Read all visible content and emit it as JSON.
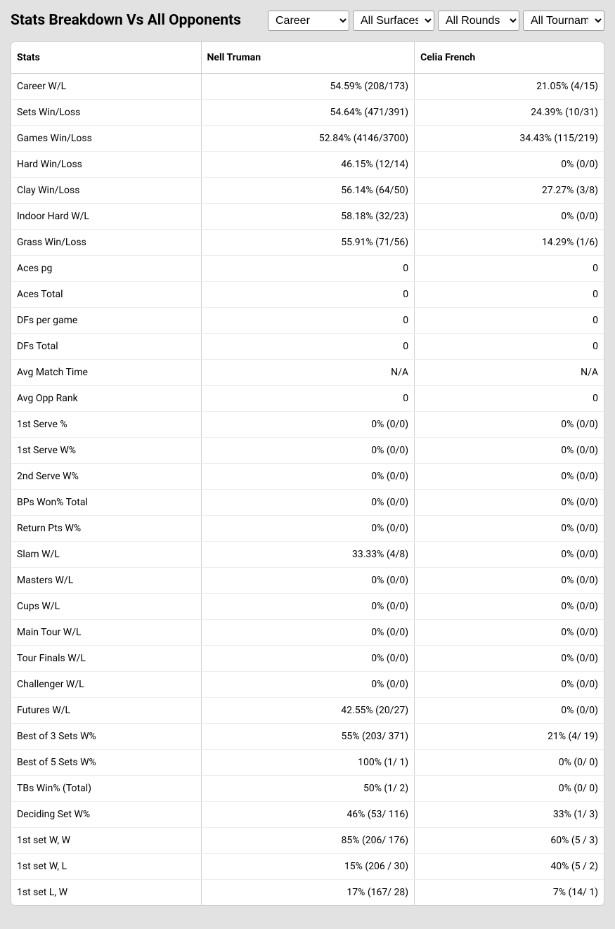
{
  "title": "Stats Breakdown Vs All Opponents",
  "filters": {
    "time": {
      "selected": "Career",
      "options": [
        "Career"
      ]
    },
    "surface": {
      "selected": "All Surfaces",
      "options": [
        "All Surfaces"
      ]
    },
    "rounds": {
      "selected": "All Rounds",
      "options": [
        "All Rounds"
      ]
    },
    "tournaments": {
      "selected": "All Tournaments",
      "options": [
        "All Tournaments"
      ]
    }
  },
  "columns": {
    "stat": "Stats",
    "p1": "Nell Truman",
    "p2": "Celia French"
  },
  "rows": [
    {
      "stat": "Career W/L",
      "p1": "54.59% (208/173)",
      "p2": "21.05% (4/15)"
    },
    {
      "stat": "Sets Win/Loss",
      "p1": "54.64% (471/391)",
      "p2": "24.39% (10/31)"
    },
    {
      "stat": "Games Win/Loss",
      "p1": "52.84% (4146/3700)",
      "p2": "34.43% (115/219)"
    },
    {
      "stat": "Hard Win/Loss",
      "p1": "46.15% (12/14)",
      "p2": "0% (0/0)"
    },
    {
      "stat": "Clay Win/Loss",
      "p1": "56.14% (64/50)",
      "p2": "27.27% (3/8)"
    },
    {
      "stat": "Indoor Hard W/L",
      "p1": "58.18% (32/23)",
      "p2": "0% (0/0)"
    },
    {
      "stat": "Grass Win/Loss",
      "p1": "55.91% (71/56)",
      "p2": "14.29% (1/6)"
    },
    {
      "stat": "Aces pg",
      "p1": "0",
      "p2": "0"
    },
    {
      "stat": "Aces Total",
      "p1": "0",
      "p2": "0"
    },
    {
      "stat": "DFs per game",
      "p1": "0",
      "p2": "0"
    },
    {
      "stat": "DFs Total",
      "p1": "0",
      "p2": "0"
    },
    {
      "stat": "Avg Match Time",
      "p1": "N/A",
      "p2": "N/A"
    },
    {
      "stat": "Avg Opp Rank",
      "p1": "0",
      "p2": "0"
    },
    {
      "stat": "1st Serve %",
      "p1": "0% (0/0)",
      "p2": "0% (0/0)"
    },
    {
      "stat": "1st Serve W%",
      "p1": "0% (0/0)",
      "p2": "0% (0/0)"
    },
    {
      "stat": "2nd Serve W%",
      "p1": "0% (0/0)",
      "p2": "0% (0/0)"
    },
    {
      "stat": "BPs Won% Total",
      "p1": "0% (0/0)",
      "p2": "0% (0/0)"
    },
    {
      "stat": "Return Pts W%",
      "p1": "0% (0/0)",
      "p2": "0% (0/0)"
    },
    {
      "stat": "Slam W/L",
      "p1": "33.33% (4/8)",
      "p2": "0% (0/0)"
    },
    {
      "stat": "Masters W/L",
      "p1": "0% (0/0)",
      "p2": "0% (0/0)"
    },
    {
      "stat": "Cups W/L",
      "p1": "0% (0/0)",
      "p2": "0% (0/0)"
    },
    {
      "stat": "Main Tour W/L",
      "p1": "0% (0/0)",
      "p2": "0% (0/0)"
    },
    {
      "stat": "Tour Finals W/L",
      "p1": "0% (0/0)",
      "p2": "0% (0/0)"
    },
    {
      "stat": "Challenger W/L",
      "p1": "0% (0/0)",
      "p2": "0% (0/0)"
    },
    {
      "stat": "Futures W/L",
      "p1": "42.55% (20/27)",
      "p2": "0% (0/0)"
    },
    {
      "stat": "Best of 3 Sets W%",
      "p1": "55% (203/ 371)",
      "p2": "21% (4/ 19)"
    },
    {
      "stat": "Best of 5 Sets W%",
      "p1": "100% (1/ 1)",
      "p2": "0% (0/ 0)"
    },
    {
      "stat": "TBs Win% (Total)",
      "p1": "50% (1/ 2)",
      "p2": "0% (0/ 0)"
    },
    {
      "stat": "Deciding Set W%",
      "p1": "46% (53/ 116)",
      "p2": "33% (1/ 3)"
    },
    {
      "stat": "1st set W, W",
      "p1": "85% (206/ 176)",
      "p2": "60% (5 / 3)"
    },
    {
      "stat": "1st set W, L",
      "p1": "15% (206 / 30)",
      "p2": "40% (5 / 2)"
    },
    {
      "stat": "1st set L, W",
      "p1": "17% (167/ 28)",
      "p2": "7% (14/ 1)"
    }
  ],
  "colors": {
    "page_bg": "#e2e2e2",
    "card_bg": "#ffffff",
    "border": "#d0d0d0",
    "row_border": "#eeeeee",
    "text": "#000000"
  }
}
